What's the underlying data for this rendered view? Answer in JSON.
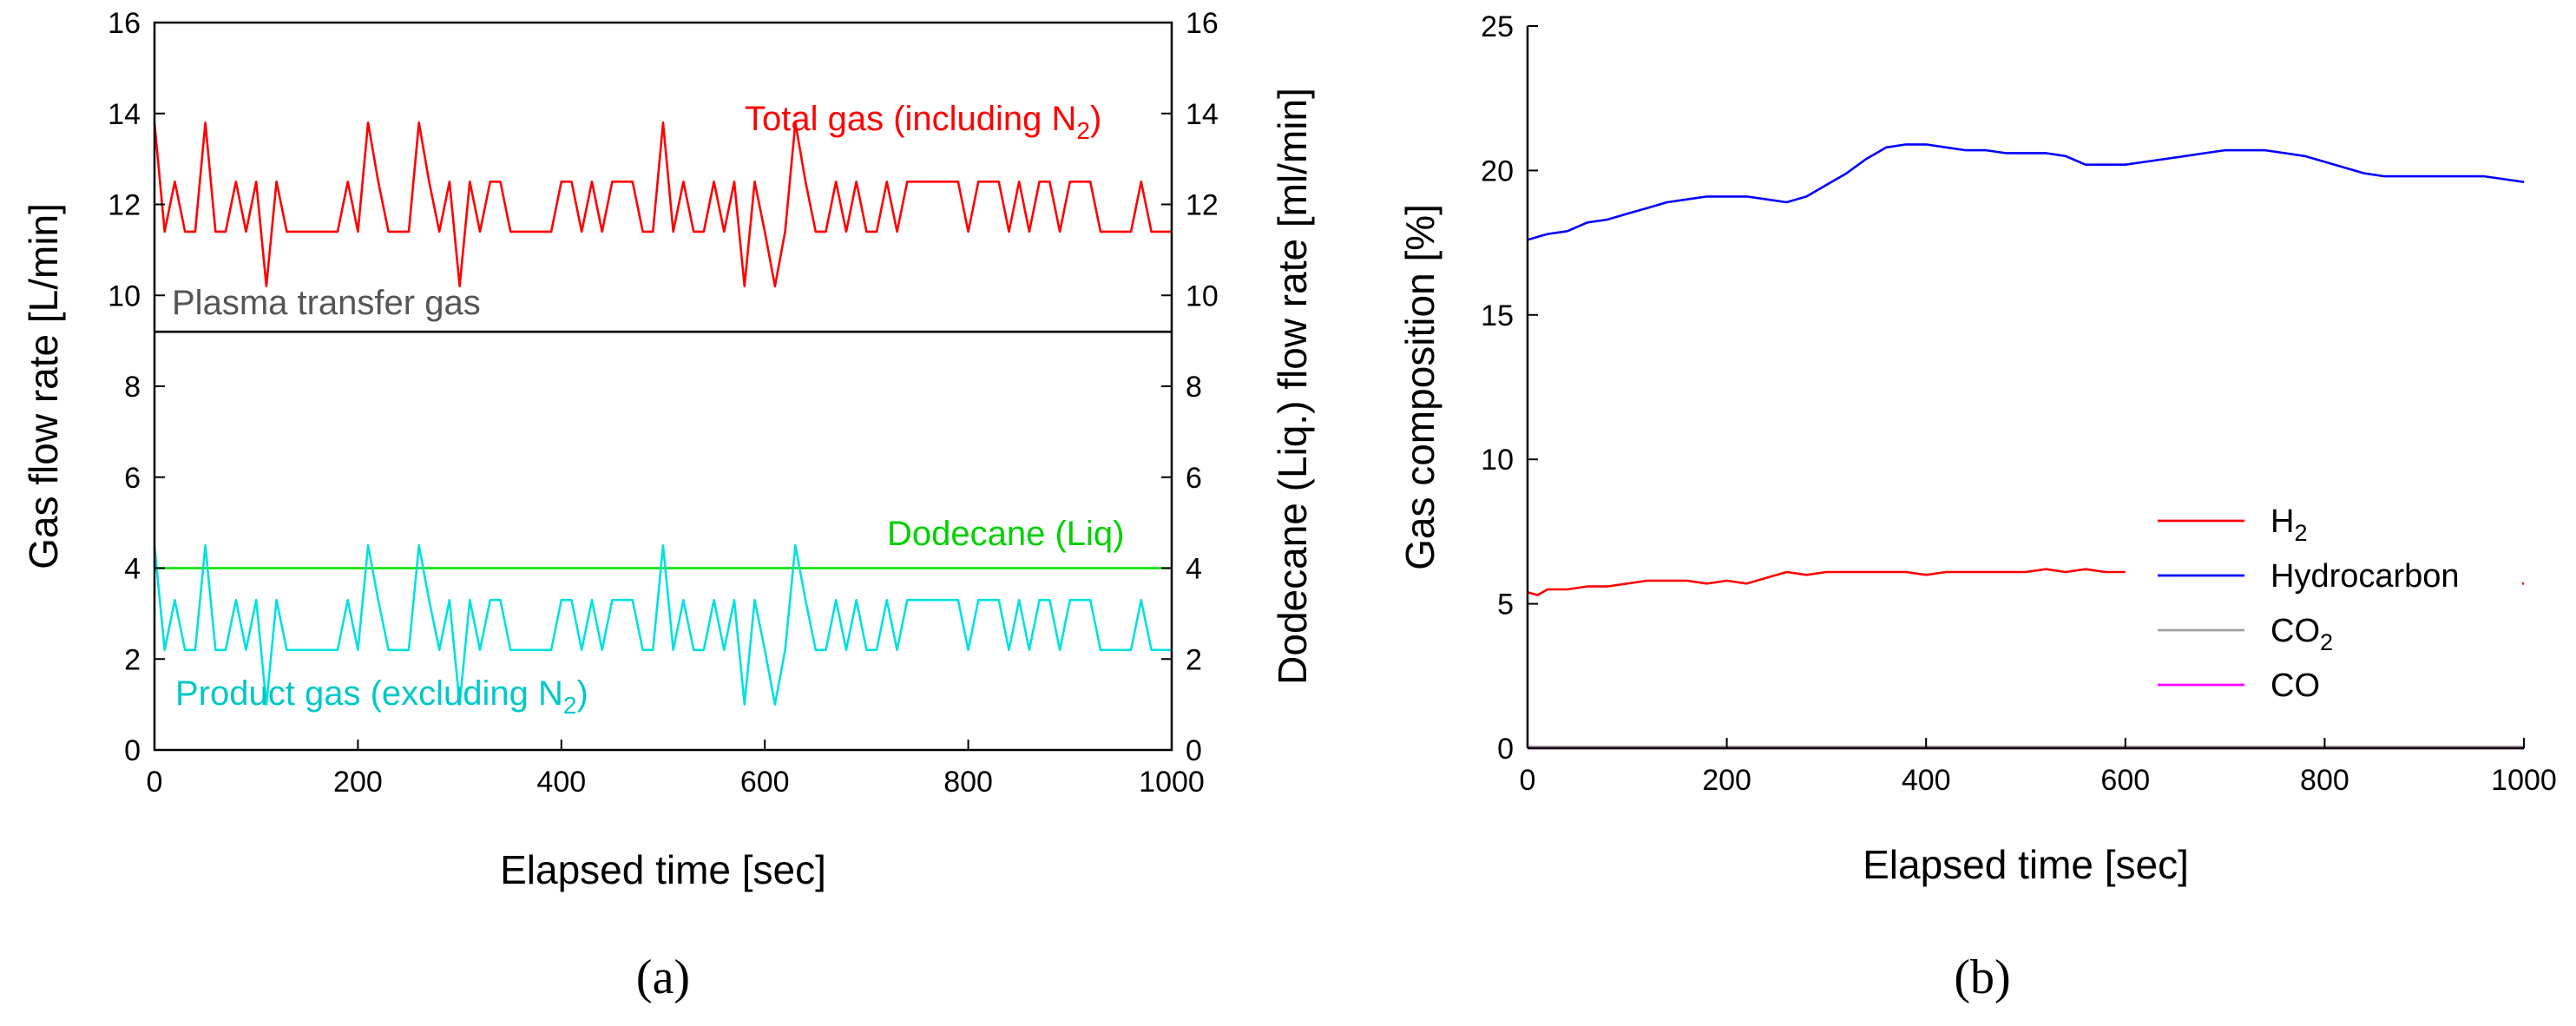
{
  "chart_data": [
    {
      "type": "line",
      "panel_label": "(a)",
      "xlabel": "Elapsed time [sec]",
      "ylabel": "Gas flow rate [L/min]",
      "y2label": "Dodecane (Liq.) flow rate [ml/min]",
      "xlim": [
        0,
        1000
      ],
      "ylim": [
        0,
        16
      ],
      "y2lim": [
        0,
        16
      ],
      "xticks": [
        "0",
        "200",
        "400",
        "600",
        "800",
        "1000"
      ],
      "yticks": [
        "0",
        "2",
        "4",
        "6",
        "8",
        "10",
        "12",
        "14",
        "16"
      ],
      "y2ticks": [
        "0",
        "2",
        "4",
        "6",
        "8",
        "10",
        "12",
        "14",
        "16"
      ],
      "annotations": {
        "total_gas": {
          "text": "Total gas (including N",
          "sub": "2",
          "tail": ")"
        },
        "plasma": {
          "text": "Plasma transfer gas"
        },
        "dodecane": {
          "text": "Dodecane (Liq)"
        },
        "product_gas": {
          "text": "Product gas (excluding N",
          "sub": "2",
          "tail": ")"
        }
      },
      "series": [
        {
          "name": "Total gas (including N2)",
          "color": "#ff0000",
          "x": [
            0,
            10,
            20,
            30,
            40,
            50,
            60,
            70,
            80,
            90,
            100,
            110,
            120,
            130,
            140,
            150,
            160,
            170,
            180,
            190,
            200,
            210,
            220,
            230,
            240,
            250,
            260,
            270,
            280,
            290,
            300,
            310,
            320,
            330,
            340,
            350,
            360,
            370,
            380,
            390,
            400,
            410,
            420,
            430,
            440,
            450,
            460,
            470,
            480,
            490,
            500,
            510,
            520,
            530,
            540,
            550,
            560,
            570,
            580,
            590,
            600,
            610,
            620,
            630,
            640,
            650,
            660,
            670,
            680,
            690,
            700,
            710,
            720,
            730,
            740,
            750,
            760,
            770,
            780,
            790,
            800,
            810,
            820,
            830,
            840,
            850,
            860,
            870,
            880,
            890,
            900,
            910,
            920,
            930,
            940,
            950,
            960,
            970,
            980,
            990,
            1000
          ],
          "y": [
            13.8,
            11.4,
            12.5,
            11.4,
            11.4,
            13.8,
            11.4,
            11.4,
            12.5,
            11.4,
            12.5,
            10.2,
            12.5,
            11.4,
            11.4,
            11.4,
            11.4,
            11.4,
            11.4,
            12.5,
            11.4,
            13.8,
            12.5,
            11.4,
            11.4,
            11.4,
            13.8,
            12.5,
            11.4,
            12.5,
            10.2,
            12.5,
            11.4,
            12.5,
            12.5,
            11.4,
            11.4,
            11.4,
            11.4,
            11.4,
            12.5,
            12.5,
            11.4,
            12.5,
            11.4,
            12.5,
            12.5,
            12.5,
            11.4,
            11.4,
            13.8,
            11.4,
            12.5,
            11.4,
            11.4,
            12.5,
            11.4,
            12.5,
            10.2,
            12.5,
            11.4,
            10.2,
            11.4,
            13.8,
            12.5,
            11.4,
            11.4,
            12.5,
            11.4,
            12.5,
            11.4,
            11.4,
            12.5,
            11.4,
            12.5,
            12.5,
            12.5,
            12.5,
            12.5,
            12.5,
            11.4,
            12.5,
            12.5,
            12.5,
            11.4,
            12.5,
            11.4,
            12.5,
            12.5,
            11.4,
            12.5,
            12.5,
            12.5,
            11.4,
            11.4,
            11.4,
            11.4,
            12.5,
            11.4,
            11.4,
            11.4
          ]
        },
        {
          "name": "Plasma transfer gas",
          "color": "#000000",
          "x": [
            0,
            1000
          ],
          "y": [
            9.2,
            9.2
          ]
        },
        {
          "name": "Dodecane (Liq)",
          "color": "#00e000",
          "x": [
            0,
            1000
          ],
          "y": [
            4.0,
            4.0
          ]
        },
        {
          "name": "Product gas (excluding N2)",
          "color": "#00e0e0",
          "x": [
            0,
            10,
            20,
            30,
            40,
            50,
            60,
            70,
            80,
            90,
            100,
            110,
            120,
            130,
            140,
            150,
            160,
            170,
            180,
            190,
            200,
            210,
            220,
            230,
            240,
            250,
            260,
            270,
            280,
            290,
            300,
            310,
            320,
            330,
            340,
            350,
            360,
            370,
            380,
            390,
            400,
            410,
            420,
            430,
            440,
            450,
            460,
            470,
            480,
            490,
            500,
            510,
            520,
            530,
            540,
            550,
            560,
            570,
            580,
            590,
            600,
            610,
            620,
            630,
            640,
            650,
            660,
            670,
            680,
            690,
            700,
            710,
            720,
            730,
            740,
            750,
            760,
            770,
            780,
            790,
            800,
            810,
            820,
            830,
            840,
            850,
            860,
            870,
            880,
            890,
            900,
            910,
            920,
            930,
            940,
            950,
            960,
            970,
            980,
            990,
            1000
          ],
          "y": [
            4.5,
            2.2,
            3.3,
            2.2,
            2.2,
            4.5,
            2.2,
            2.2,
            3.3,
            2.2,
            3.3,
            1.0,
            3.3,
            2.2,
            2.2,
            2.2,
            2.2,
            2.2,
            2.2,
            3.3,
            2.2,
            4.5,
            3.3,
            2.2,
            2.2,
            2.2,
            4.5,
            3.3,
            2.2,
            3.3,
            1.0,
            3.3,
            2.2,
            3.3,
            3.3,
            2.2,
            2.2,
            2.2,
            2.2,
            2.2,
            3.3,
            3.3,
            2.2,
            3.3,
            2.2,
            3.3,
            3.3,
            3.3,
            2.2,
            2.2,
            4.5,
            2.2,
            3.3,
            2.2,
            2.2,
            3.3,
            2.2,
            3.3,
            1.0,
            3.3,
            2.2,
            1.0,
            2.2,
            4.5,
            3.3,
            2.2,
            2.2,
            3.3,
            2.2,
            3.3,
            2.2,
            2.2,
            3.3,
            2.2,
            3.3,
            3.3,
            3.3,
            3.3,
            3.3,
            3.3,
            2.2,
            3.3,
            3.3,
            3.3,
            2.2,
            3.3,
            2.2,
            3.3,
            3.3,
            2.2,
            3.3,
            3.3,
            3.3,
            2.2,
            2.2,
            2.2,
            2.2,
            3.3,
            2.2,
            2.2,
            2.2
          ]
        }
      ]
    },
    {
      "type": "line",
      "panel_label": "(b)",
      "xlabel": "Elapsed time [sec]",
      "ylabel": "Gas composition [%]",
      "xlim": [
        0,
        1000
      ],
      "ylim": [
        0,
        25
      ],
      "xticks": [
        "0",
        "200",
        "400",
        "600",
        "800",
        "1000"
      ],
      "yticks": [
        "0",
        "5",
        "10",
        "15",
        "20",
        "25"
      ],
      "legend_position": "center-right",
      "legend": [
        {
          "text": "H",
          "sub": "2",
          "color": "#ff0000"
        },
        {
          "text": "Hydrocarbon",
          "sub": "",
          "color": "#0000ff"
        },
        {
          "text": "CO",
          "sub": "2",
          "color": "#a0a0a0"
        },
        {
          "text": "CO",
          "sub": "",
          "color": "#ff00ff"
        }
      ],
      "series": [
        {
          "name": "Hydrocarbon",
          "color": "#0000ff",
          "x": [
            0,
            20,
            40,
            60,
            80,
            100,
            120,
            140,
            160,
            180,
            200,
            220,
            240,
            260,
            280,
            300,
            320,
            340,
            360,
            380,
            400,
            420,
            440,
            460,
            480,
            500,
            520,
            540,
            560,
            580,
            600,
            620,
            640,
            660,
            680,
            700,
            720,
            740,
            760,
            780,
            800,
            820,
            840,
            860,
            880,
            900,
            920,
            940,
            960,
            980,
            1000
          ],
          "y": [
            17.6,
            17.8,
            17.9,
            18.2,
            18.3,
            18.5,
            18.7,
            18.9,
            19.0,
            19.1,
            19.1,
            19.1,
            19.0,
            18.9,
            19.1,
            19.5,
            19.9,
            20.4,
            20.8,
            20.9,
            20.9,
            20.8,
            20.7,
            20.7,
            20.6,
            20.6,
            20.6,
            20.5,
            20.2,
            20.2,
            20.2,
            20.3,
            20.4,
            20.5,
            20.6,
            20.7,
            20.7,
            20.7,
            20.6,
            20.5,
            20.3,
            20.1,
            19.9,
            19.8,
            19.8,
            19.8,
            19.8,
            19.8,
            19.8,
            19.7,
            19.6
          ]
        },
        {
          "name": "H2",
          "color": "#ff0000",
          "x": [
            0,
            10,
            20,
            40,
            60,
            80,
            100,
            120,
            140,
            160,
            180,
            200,
            220,
            240,
            260,
            280,
            300,
            320,
            340,
            360,
            380,
            400,
            420,
            440,
            460,
            480,
            500,
            520,
            540,
            560,
            580,
            600
          ],
          "y": [
            5.4,
            5.3,
            5.5,
            5.5,
            5.6,
            5.6,
            5.7,
            5.8,
            5.8,
            5.8,
            5.7,
            5.8,
            5.7,
            5.9,
            6.1,
            6.0,
            6.1,
            6.1,
            6.1,
            6.1,
            6.1,
            6.0,
            6.1,
            6.1,
            6.1,
            6.1,
            6.1,
            6.2,
            6.1,
            6.2,
            6.1,
            6.1
          ]
        },
        {
          "name": "H2 (end segment)",
          "color": "#ff0000",
          "x": [
            985,
            1000
          ],
          "y": [
            5.7,
            5.7
          ]
        },
        {
          "name": "CO2",
          "color": "#a0a0a0",
          "x": [
            0,
            1000
          ],
          "y": [
            0.05,
            0.05
          ]
        },
        {
          "name": "CO",
          "color": "#ff00ff",
          "x": [
            0,
            1000
          ],
          "y": [
            0.0,
            0.0
          ]
        }
      ]
    }
  ]
}
